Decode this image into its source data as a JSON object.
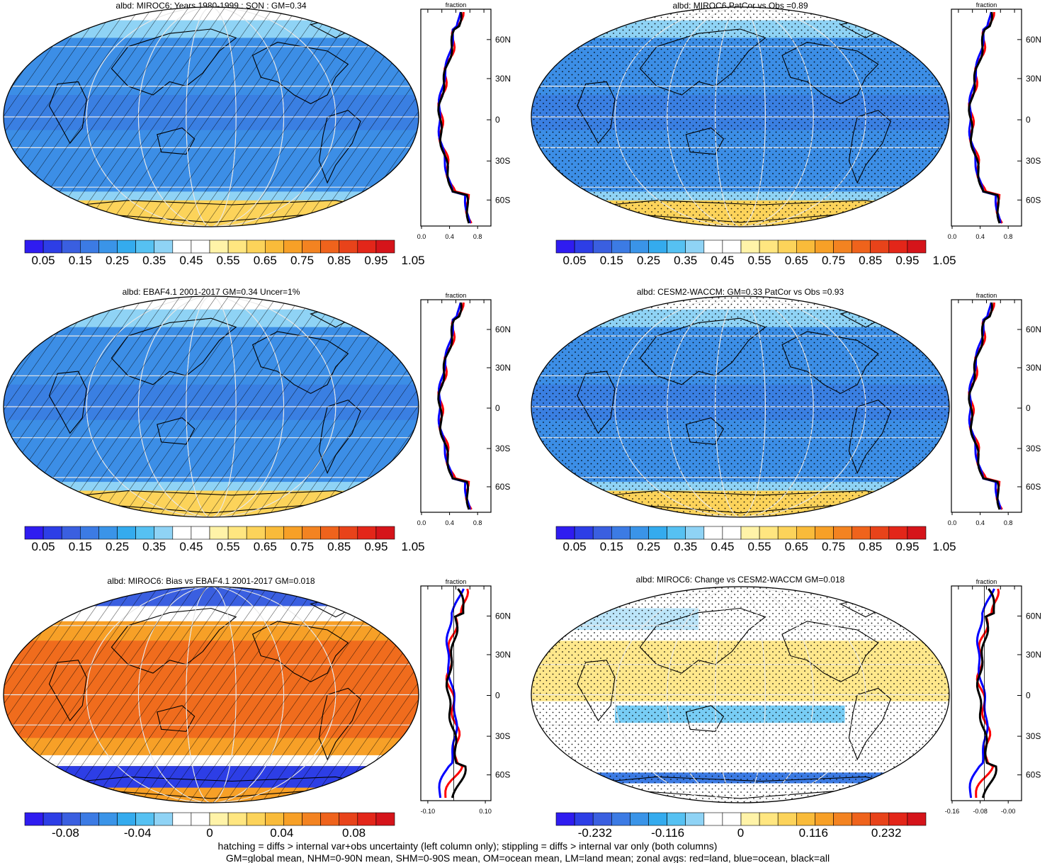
{
  "panels": [
    {
      "id": "p1",
      "title": "albd: MIROC6: Years 1980-1999 : SON : GM=0.34",
      "field": "abs",
      "overlay": "hatch",
      "colorbar": {
        "labels": [
          "0.05",
          "0.15",
          "0.25",
          "0.35",
          "0.45",
          "0.55",
          "0.65",
          "0.75",
          "0.85",
          "0.95",
          "1.05"
        ]
      },
      "zonal": {
        "label": "fraction",
        "ticks": [
          "0.0",
          "0.4",
          "0.8"
        ],
        "lat_labels": [
          "60N",
          "30N",
          "0",
          "30S",
          "60S"
        ]
      }
    },
    {
      "id": "p2",
      "title": "albd: MIROC6 PatCor vs Obs =0.89",
      "field": "abs",
      "overlay": "stipple",
      "colorbar": {
        "labels": [
          "0.05",
          "0.15",
          "0.25",
          "0.35",
          "0.45",
          "0.55",
          "0.65",
          "0.75",
          "0.85",
          "0.95",
          "1.05"
        ]
      },
      "zonal": {
        "label": "fraction",
        "ticks": [
          "0.0",
          "0.4",
          "0.8"
        ],
        "lat_labels": [
          "60N",
          "30N",
          "0",
          "30S",
          "60S"
        ]
      }
    },
    {
      "id": "p3",
      "title": "albd: EBAF4.1 2001-2017 GM=0.34 Uncer=1%",
      "field": "abs",
      "overlay": "hatch",
      "colorbar": {
        "labels": [
          "0.05",
          "0.15",
          "0.25",
          "0.35",
          "0.45",
          "0.55",
          "0.65",
          "0.75",
          "0.85",
          "0.95",
          "1.05"
        ]
      },
      "zonal": {
        "label": "fraction",
        "ticks": [
          "0.0",
          "0.4",
          "0.8"
        ],
        "lat_labels": [
          "60N",
          "30N",
          "0",
          "30S",
          "60S"
        ]
      }
    },
    {
      "id": "p4",
      "title": "albd: CESM2-WACCM: GM=0.33 PatCor vs Obs =0.93",
      "field": "abs",
      "overlay": "stipple",
      "colorbar": {
        "labels": [
          "0.05",
          "0.15",
          "0.25",
          "0.35",
          "0.45",
          "0.55",
          "0.65",
          "0.75",
          "0.85",
          "0.95",
          "1.05"
        ]
      },
      "zonal": {
        "label": "fraction",
        "ticks": [
          "0.0",
          "0.4",
          "0.8"
        ],
        "lat_labels": [
          "60N",
          "30N",
          "0",
          "30S",
          "60S"
        ]
      }
    },
    {
      "id": "p5",
      "title": "albd: MIROC6: Bias vs EBAF4.1 2001-2017  GM=0.018",
      "field": "bias",
      "overlay": "hatch",
      "colorbar": {
        "labels": [
          "-0.08",
          "-0.04",
          "0",
          "0.04",
          "0.08"
        ]
      },
      "zonal": {
        "label": "fraction",
        "ticks": [
          "-0.10",
          "0.10"
        ],
        "lat_labels": [
          "60N",
          "30N",
          "0",
          "30S",
          "60S"
        ]
      }
    },
    {
      "id": "p6",
      "title": "albd: MIROC6: Change vs CESM2-WACCM GM=0.018",
      "field": "change",
      "overlay": "stipple",
      "colorbar": {
        "labels": [
          "-0.232",
          "-0.116",
          "0",
          "0.116",
          "0.232"
        ]
      },
      "zonal": {
        "label": "fraction",
        "ticks": [
          "-0.16",
          "-0.08",
          "-0.00"
        ],
        "lat_labels": [
          "60N",
          "30N",
          "0",
          "30S",
          "60S"
        ]
      }
    }
  ],
  "footer": {
    "line1": "hatching = diffs > internal var+obs uncertainty (left column only); stippling = diffs > internal var only (both columns)",
    "line2": "GM=global mean, NHM=0-90N mean, SHM=0-90S mean, OM=ocean mean, LM=land mean; zonal avgs: red=land, blue=ocean, black=all"
  },
  "colors": {
    "land_curve": "#ff0000",
    "ocean_curve": "#0000ff",
    "all_curve": "#000000",
    "palette_abs": [
      "#2f1cf0",
      "#2d3ee6",
      "#3a5fe0",
      "#3c7be4",
      "#3a94e8",
      "#34abee",
      "#56c1f2",
      "#8fd3f5",
      "#ffffff",
      "#ffffff",
      "#fff3a8",
      "#ffe680",
      "#fcd35a",
      "#f9bb3a",
      "#f7a027",
      "#f38321",
      "#ef631c",
      "#e8431a",
      "#e32619",
      "#d5141a"
    ]
  }
}
